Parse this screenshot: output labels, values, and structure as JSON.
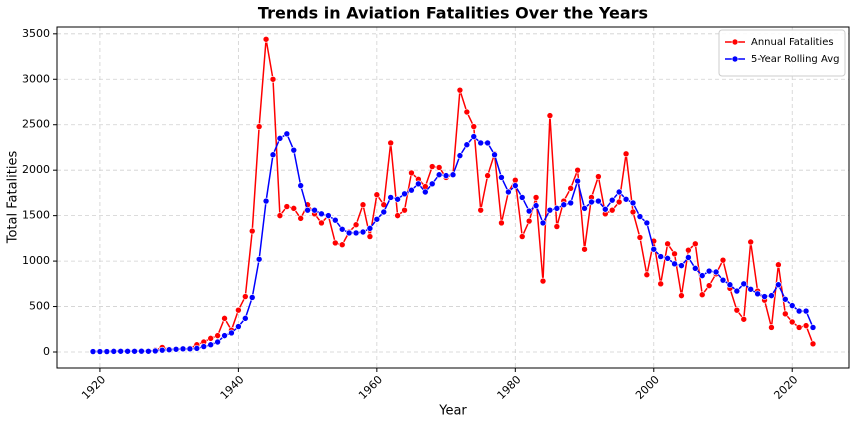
{
  "chart_data": {
    "type": "line",
    "title": "Trends in Aviation Fatalities Over the Years",
    "x_label": "Year",
    "y_label": "Total Fatalities",
    "x": [
      1919,
      1920,
      1921,
      1922,
      1923,
      1924,
      1925,
      1926,
      1927,
      1928,
      1929,
      1930,
      1931,
      1932,
      1933,
      1934,
      1935,
      1936,
      1937,
      1938,
      1939,
      1940,
      1941,
      1942,
      1943,
      1944,
      1945,
      1946,
      1947,
      1948,
      1949,
      1950,
      1951,
      1952,
      1953,
      1954,
      1955,
      1956,
      1957,
      1958,
      1959,
      1960,
      1961,
      1962,
      1963,
      1964,
      1965,
      1966,
      1967,
      1968,
      1969,
      1970,
      1971,
      1972,
      1973,
      1974,
      1975,
      1976,
      1977,
      1978,
      1979,
      1980,
      1981,
      1982,
      1983,
      1984,
      1985,
      1986,
      1987,
      1988,
      1989,
      1990,
      1991,
      1992,
      1993,
      1994,
      1995,
      1996,
      1997,
      1998,
      1999,
      2000,
      2001,
      2002,
      2003,
      2004,
      2005,
      2006,
      2007,
      2008,
      2009,
      2010,
      2011,
      2012,
      2013,
      2014,
      2015,
      2016,
      2017,
      2018,
      2019,
      2020,
      2021,
      2022,
      2023
    ],
    "series": [
      {
        "name": "Annual Fatalities",
        "color": "#ff0000",
        "values": [
          5,
          5,
          5,
          10,
          10,
          5,
          10,
          10,
          5,
          20,
          50,
          30,
          30,
          30,
          40,
          80,
          110,
          150,
          180,
          370,
          240,
          460,
          610,
          1330,
          2480,
          3440,
          3000,
          1500,
          1600,
          1580,
          1470,
          1620,
          1520,
          1420,
          1500,
          1200,
          1180,
          1320,
          1400,
          1620,
          1270,
          1730,
          1620,
          2300,
          1500,
          1560,
          1970,
          1900,
          1820,
          2040,
          2030,
          1920,
          1950,
          2880,
          2640,
          2480,
          1560,
          1940,
          2180,
          1420,
          1760,
          1890,
          1270,
          1440,
          1700,
          780,
          2600,
          1380,
          1660,
          1800,
          2000,
          1130,
          1700,
          1930,
          1520,
          1560,
          1650,
          2180,
          1540,
          1260,
          850,
          1220,
          750,
          1190,
          1080,
          620,
          1120,
          1190,
          630,
          730,
          860,
          1010,
          700,
          460,
          360,
          1210,
          670,
          570,
          270,
          960,
          420,
          330,
          270,
          290,
          90
        ]
      },
      {
        "name": "5-Year Rolling Avg",
        "color": "#0000ff",
        "values": [
          5,
          5,
          5,
          7,
          8,
          8,
          8,
          9,
          8,
          12,
          20,
          25,
          30,
          35,
          35,
          40,
          60,
          80,
          110,
          180,
          210,
          280,
          370,
          600,
          1020,
          1660,
          2170,
          2350,
          2400,
          2220,
          1830,
          1560,
          1560,
          1520,
          1500,
          1450,
          1350,
          1310,
          1310,
          1320,
          1360,
          1460,
          1540,
          1700,
          1680,
          1740,
          1780,
          1850,
          1760,
          1850,
          1950,
          1940,
          1950,
          2160,
          2280,
          2370,
          2300,
          2300,
          2170,
          1920,
          1760,
          1830,
          1700,
          1550,
          1610,
          1420,
          1560,
          1580,
          1620,
          1640,
          1880,
          1580,
          1650,
          1660,
          1570,
          1670,
          1760,
          1680,
          1640,
          1490,
          1420,
          1130,
          1050,
          1030,
          970,
          950,
          1040,
          920,
          840,
          890,
          880,
          790,
          740,
          670,
          750,
          690,
          640,
          610,
          620,
          740,
          580,
          510,
          450,
          450,
          270
        ]
      }
    ],
    "xlim": [
      1913.8,
      2028.2
    ],
    "ylim": [
      -176,
      3575
    ],
    "xticks": [
      1920,
      1940,
      1960,
      1980,
      2000,
      2020
    ],
    "yticks": [
      0,
      500,
      1000,
      1500,
      2000,
      2500,
      3000,
      3500
    ],
    "grid": true,
    "legend": "upper right"
  }
}
